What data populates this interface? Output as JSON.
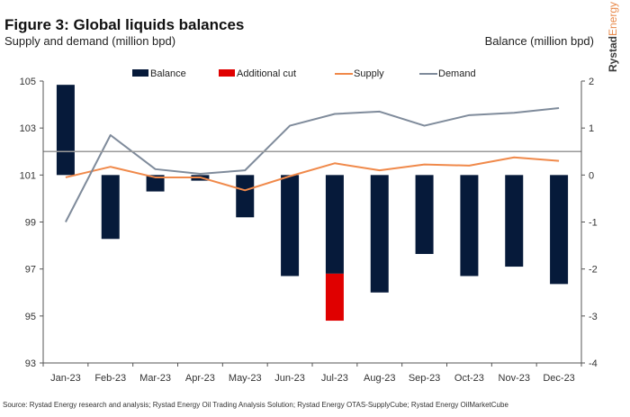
{
  "header": {
    "title": "Figure 3: Global liquids balances",
    "subtitle_left": "Supply and demand (million bpd)",
    "subtitle_right": "Balance (million bpd)",
    "brand_bold": "Rystad",
    "brand_light": "Energy"
  },
  "footer": {
    "source": "Source: Rystad Energy research and analysis; Rystad Energy Oil Trading Analysis Solution; Rystad Energy OTAS-SupplyCube; Rystad Energy OilMarketCube"
  },
  "colors": {
    "balance": "#061a3a",
    "additional_cut": "#e00000",
    "supply": "#f0894a",
    "demand": "#7f8b9b",
    "reference_line": "#9a9a9a",
    "axis": "#555555"
  },
  "chart_data": {
    "type": "bar",
    "title": "Figure 3: Global liquids balances",
    "categories": [
      "Jan-23",
      "Feb-23",
      "Mar-23",
      "Apr-23",
      "May-23",
      "Jun-23",
      "Jul-23",
      "Aug-23",
      "Sep-23",
      "Oct-23",
      "Nov-23",
      "Dec-23"
    ],
    "y_left": {
      "label": "Supply and demand (million bpd)",
      "range": [
        93,
        105
      ],
      "ticks": [
        93,
        95,
        97,
        99,
        101,
        103,
        105
      ]
    },
    "y_right": {
      "label": "Balance (million bpd)",
      "range": [
        -4,
        2
      ],
      "ticks": [
        -4,
        -3,
        -2,
        -1,
        0,
        1,
        2
      ]
    },
    "reference_line_left": 102.0,
    "legend_position": "top",
    "series": [
      {
        "name": "Balance",
        "type": "bar",
        "axis": "right",
        "values": [
          1.92,
          -1.36,
          -0.35,
          -0.12,
          -0.9,
          -2.15,
          -2.1,
          -2.5,
          -1.68,
          -2.15,
          -1.95,
          -2.32
        ]
      },
      {
        "name": "Additional cut",
        "type": "bar-stacked",
        "axis": "right",
        "values": [
          0,
          0,
          0,
          0,
          0,
          0,
          -1.0,
          0,
          0,
          0,
          0,
          0
        ]
      },
      {
        "name": "Supply",
        "type": "line",
        "axis": "left",
        "values": [
          100.9,
          101.35,
          100.9,
          100.9,
          100.35,
          100.95,
          101.5,
          101.2,
          101.45,
          101.4,
          101.75,
          101.6
        ]
      },
      {
        "name": "Demand",
        "type": "line",
        "axis": "left",
        "values": [
          99.0,
          102.7,
          101.25,
          101.05,
          101.2,
          103.1,
          103.6,
          103.7,
          103.1,
          103.55,
          103.65,
          103.85
        ]
      }
    ]
  }
}
